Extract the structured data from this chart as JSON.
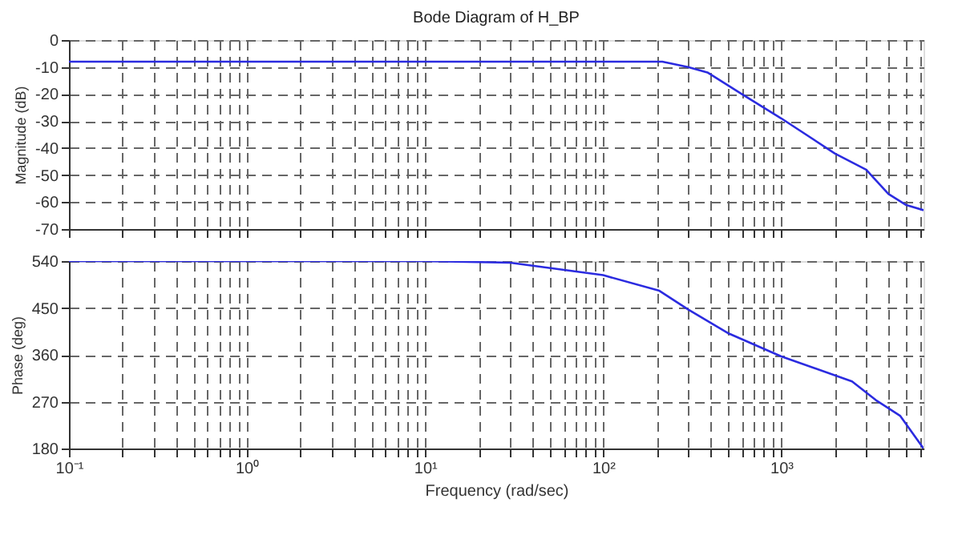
{
  "chart_data": [
    {
      "type": "line",
      "title": "Bode Diagram of H_BP",
      "ylabel": "Magnitude (dB)",
      "x": [
        0.1,
        1,
        10,
        100,
        215,
        300,
        385,
        600,
        1000,
        2000,
        3000,
        4000,
        5000,
        6300
      ],
      "series": [
        {
          "color": "#2b2be0",
          "values": [
            -8,
            -8,
            -8,
            -8,
            -8,
            -10,
            -12,
            -20,
            -29,
            -42,
            -48,
            -57,
            -61,
            -63
          ]
        }
      ],
      "xlim": [
        0.1,
        6300
      ],
      "ylim": [
        -70,
        0
      ],
      "yticks": [
        -70,
        -60,
        -50,
        -40,
        -30,
        -20,
        -10,
        0
      ],
      "xticks": [
        {
          "value": 0.1,
          "label": null
        },
        {
          "value": 0.2,
          "label": null
        },
        {
          "value": 0.3,
          "label": null
        },
        {
          "value": 0.4,
          "label": null
        },
        {
          "value": 0.5,
          "label": null
        },
        {
          "value": 0.6,
          "label": null
        },
        {
          "value": 0.7,
          "label": null
        },
        {
          "value": 0.8,
          "label": null
        },
        {
          "value": 0.9,
          "label": null
        },
        {
          "value": 1,
          "label": null
        },
        {
          "value": 2,
          "label": null
        },
        {
          "value": 3,
          "label": null
        },
        {
          "value": 4,
          "label": null
        },
        {
          "value": 5,
          "label": null
        },
        {
          "value": 6,
          "label": null
        },
        {
          "value": 7,
          "label": null
        },
        {
          "value": 8,
          "label": null
        },
        {
          "value": 9,
          "label": null
        },
        {
          "value": 10,
          "label": null
        },
        {
          "value": 20,
          "label": null
        },
        {
          "value": 30,
          "label": null
        },
        {
          "value": 40,
          "label": null
        },
        {
          "value": 50,
          "label": null
        },
        {
          "value": 60,
          "label": null
        },
        {
          "value": 70,
          "label": null
        },
        {
          "value": 80,
          "label": null
        },
        {
          "value": 90,
          "label": null
        },
        {
          "value": 100,
          "label": null
        },
        {
          "value": 200,
          "label": null
        },
        {
          "value": 300,
          "label": null
        },
        {
          "value": 400,
          "label": null
        },
        {
          "value": 500,
          "label": null
        },
        {
          "value": 600,
          "label": null
        },
        {
          "value": 700,
          "label": null
        },
        {
          "value": 800,
          "label": null
        },
        {
          "value": 900,
          "label": null
        },
        {
          "value": 1000,
          "label": null
        },
        {
          "value": 2000,
          "label": null
        },
        {
          "value": 3000,
          "label": null
        },
        {
          "value": 4000,
          "label": null
        },
        {
          "value": 5000,
          "label": null
        },
        {
          "value": 6000,
          "label": null
        }
      ],
      "log": "x",
      "grid": true,
      "tick_labels": "y",
      "line_style": "solid",
      "marker": "none"
    },
    {
      "type": "line",
      "ylabel": "Phase (deg)",
      "xlabel": "Frequency  (rad/sec)",
      "x": [
        0.1,
        1,
        10,
        30,
        100,
        207,
        300,
        500,
        1000,
        2500,
        3400,
        4650,
        6300
      ],
      "series": [
        {
          "color": "#2b2be0",
          "values": [
            540,
            540,
            540,
            537,
            513,
            483,
            447,
            402,
            357,
            309,
            273,
            243,
            180
          ]
        }
      ],
      "xlim": [
        0.1,
        6300
      ],
      "ylim": [
        180,
        540
      ],
      "yticks": [
        180,
        270,
        360,
        450,
        540
      ],
      "xticks": [
        {
          "value": 0.1,
          "label": "10⁻¹"
        },
        {
          "value": 0.2,
          "label": null
        },
        {
          "value": 0.3,
          "label": null
        },
        {
          "value": 0.4,
          "label": null
        },
        {
          "value": 0.5,
          "label": null
        },
        {
          "value": 0.6,
          "label": null
        },
        {
          "value": 0.7,
          "label": null
        },
        {
          "value": 0.8,
          "label": null
        },
        {
          "value": 0.9,
          "label": null
        },
        {
          "value": 1,
          "label": "10⁰"
        },
        {
          "value": 2,
          "label": null
        },
        {
          "value": 3,
          "label": null
        },
        {
          "value": 4,
          "label": null
        },
        {
          "value": 5,
          "label": null
        },
        {
          "value": 6,
          "label": null
        },
        {
          "value": 7,
          "label": null
        },
        {
          "value": 8,
          "label": null
        },
        {
          "value": 9,
          "label": null
        },
        {
          "value": 10,
          "label": "10¹"
        },
        {
          "value": 20,
          "label": null
        },
        {
          "value": 30,
          "label": null
        },
        {
          "value": 40,
          "label": null
        },
        {
          "value": 50,
          "label": null
        },
        {
          "value": 60,
          "label": null
        },
        {
          "value": 70,
          "label": null
        },
        {
          "value": 80,
          "label": null
        },
        {
          "value": 90,
          "label": null
        },
        {
          "value": 100,
          "label": "10²"
        },
        {
          "value": 200,
          "label": null
        },
        {
          "value": 300,
          "label": null
        },
        {
          "value": 400,
          "label": null
        },
        {
          "value": 500,
          "label": null
        },
        {
          "value": 600,
          "label": null
        },
        {
          "value": 700,
          "label": null
        },
        {
          "value": 800,
          "label": null
        },
        {
          "value": 900,
          "label": null
        },
        {
          "value": 1000,
          "label": "10³"
        },
        {
          "value": 2000,
          "label": null
        },
        {
          "value": 3000,
          "label": null
        },
        {
          "value": 4000,
          "label": null
        },
        {
          "value": 5000,
          "label": null
        },
        {
          "value": 6000,
          "label": null
        }
      ],
      "log": "x",
      "grid": true,
      "line_style": "solid",
      "marker": "none"
    }
  ]
}
